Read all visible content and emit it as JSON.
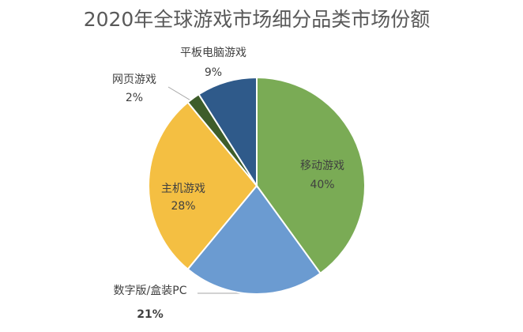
{
  "chart_data": {
    "type": "pie",
    "title": "2020年全球游戏市场细分品类市场份额",
    "categories": [
      "移动游戏",
      "数字版/盒装PC",
      "主机游戏",
      "网页游戏",
      "平板电脑游戏"
    ],
    "values": [
      40,
      21,
      28,
      2,
      9
    ],
    "value_labels": [
      "40%",
      "21%",
      "28%",
      "2%",
      "9%"
    ],
    "colors": [
      "#7aab55",
      "#6b9bd1",
      "#f4bf42",
      "#3e5d2a",
      "#2f5a8a"
    ]
  }
}
